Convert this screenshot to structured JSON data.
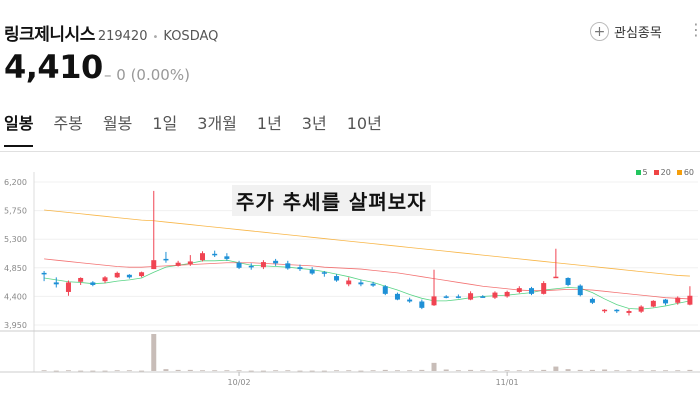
{
  "header": {
    "name": "링크제니시스",
    "code": "219420",
    "separator": "•",
    "market": "KOSDAQ",
    "watch_label": "관심종목",
    "price": "4,410",
    "change": "– 0 (0.00%)"
  },
  "tabs": [
    "일봉",
    "주봉",
    "월봉",
    "1일",
    "3개월",
    "1년",
    "3년",
    "10년"
  ],
  "active_tab": 0,
  "overlay_text": "주가 추세를 살펴보자",
  "legend": [
    {
      "label": "5",
      "color": "#22c55e"
    },
    {
      "label": "20",
      "color": "#ef4444"
    },
    {
      "label": "60",
      "color": "#f59e0b"
    }
  ],
  "chart_data": {
    "type": "candlestick",
    "y_ticks": [
      "6,200",
      "5,750",
      "5,300",
      "4,850",
      "4,400",
      "3,950"
    ],
    "ylim": [
      3950,
      6200
    ],
    "x_ticks": [
      {
        "label": "10/02",
        "index": 16
      },
      {
        "label": "11/01",
        "index": 38
      }
    ],
    "up_color": "#f04452",
    "down_color": "#1e90d6",
    "candles": [
      [
        4770,
        4760,
        4800,
        4640
      ],
      [
        4620,
        4590,
        4700,
        4540
      ],
      [
        4470,
        4620,
        4650,
        4410
      ],
      [
        4630,
        4690,
        4700,
        4580
      ],
      [
        4620,
        4580,
        4640,
        4560
      ],
      [
        4640,
        4700,
        4720,
        4610
      ],
      [
        4700,
        4770,
        4790,
        4690
      ],
      [
        4740,
        4700,
        4750,
        4680
      ],
      [
        4720,
        4780,
        4790,
        4700
      ],
      [
        4830,
        4970,
        6060,
        4830
      ],
      [
        4990,
        4970,
        5100,
        4930
      ],
      [
        4880,
        4930,
        4960,
        4870
      ],
      [
        4910,
        4950,
        5050,
        4880
      ],
      [
        4970,
        5080,
        5110,
        4950
      ],
      [
        5070,
        5050,
        5120,
        5020
      ],
      [
        5030,
        4990,
        5080,
        4960
      ],
      [
        4930,
        4850,
        4960,
        4830
      ],
      [
        4880,
        4870,
        4920,
        4820
      ],
      [
        4860,
        4940,
        4970,
        4830
      ],
      [
        4960,
        4920,
        4990,
        4880
      ],
      [
        4920,
        4840,
        4960,
        4820
      ],
      [
        4860,
        4830,
        4900,
        4800
      ],
      [
        4820,
        4760,
        4860,
        4740
      ],
      [
        4780,
        4760,
        4800,
        4710
      ],
      [
        4720,
        4650,
        4750,
        4630
      ],
      [
        4590,
        4650,
        4700,
        4560
      ],
      [
        4620,
        4590,
        4660,
        4560
      ],
      [
        4600,
        4570,
        4630,
        4550
      ],
      [
        4560,
        4440,
        4580,
        4420
      ],
      [
        4440,
        4350,
        4460,
        4340
      ],
      [
        4350,
        4320,
        4380,
        4300
      ],
      [
        4320,
        4220,
        4350,
        4200
      ],
      [
        4260,
        4400,
        4820,
        4250
      ],
      [
        4400,
        4390,
        4420,
        4370
      ],
      [
        4400,
        4390,
        4430,
        4370
      ],
      [
        4350,
        4450,
        4480,
        4340
      ],
      [
        4400,
        4390,
        4420,
        4380
      ],
      [
        4380,
        4460,
        4480,
        4360
      ],
      [
        4400,
        4470,
        4490,
        4380
      ],
      [
        4470,
        4530,
        4560,
        4450
      ],
      [
        4530,
        4440,
        4550,
        4420
      ],
      [
        4440,
        4610,
        4640,
        4430
      ],
      [
        4700,
        4710,
        5150,
        4690
      ],
      [
        4690,
        4580,
        4700,
        4560
      ],
      [
        4570,
        4420,
        4590,
        4400
      ],
      [
        4360,
        4300,
        4380,
        4280
      ],
      [
        4170,
        4190,
        4200,
        4140
      ],
      [
        4190,
        4180,
        4200,
        4140
      ],
      [
        4140,
        4170,
        4200,
        4100
      ],
      [
        4160,
        4240,
        4260,
        4140
      ],
      [
        4240,
        4330,
        4340,
        4230
      ],
      [
        4350,
        4290,
        4360,
        4260
      ],
      [
        4300,
        4380,
        4400,
        4270
      ],
      [
        4270,
        4410,
        4560,
        4260
      ]
    ],
    "ma": {
      "5": [
        4690,
        4660,
        4630,
        4620,
        4600,
        4610,
        4640,
        4660,
        4690,
        4780,
        4860,
        4890,
        4920,
        4960,
        4960,
        4970,
        4930,
        4890,
        4880,
        4870,
        4860,
        4840,
        4820,
        4790,
        4750,
        4710,
        4660,
        4620,
        4560,
        4500,
        4430,
        4370,
        4330,
        4330,
        4350,
        4380,
        4400,
        4410,
        4420,
        4440,
        4460,
        4500,
        4520,
        4540,
        4530,
        4460,
        4360,
        4270,
        4210,
        4200,
        4220,
        4250,
        4290,
        4330
      ],
      "20": [
        4990,
        4970,
        4950,
        4930,
        4910,
        4890,
        4870,
        4860,
        4860,
        4870,
        4880,
        4890,
        4900,
        4910,
        4920,
        4930,
        4930,
        4930,
        4920,
        4910,
        4900,
        4890,
        4880,
        4860,
        4850,
        4840,
        4830,
        4810,
        4790,
        4770,
        4740,
        4710,
        4680,
        4650,
        4620,
        4590,
        4560,
        4540,
        4520,
        4500,
        4490,
        4490,
        4500,
        4510,
        4510,
        4500,
        4480,
        4460,
        4440,
        4420,
        4400,
        4380,
        4370,
        4360
      ],
      "60": [
        5760,
        5740,
        5720,
        5700,
        5680,
        5660,
        5640,
        5620,
        5600,
        5590,
        5570,
        5550,
        5530,
        5510,
        5490,
        5470,
        5450,
        5430,
        5410,
        5390,
        5370,
        5350,
        5330,
        5310,
        5290,
        5270,
        5250,
        5230,
        5210,
        5190,
        5170,
        5150,
        5130,
        5110,
        5090,
        5070,
        5050,
        5030,
        5010,
        4990,
        4970,
        4950,
        4930,
        4910,
        4890,
        4870,
        4850,
        4830,
        4810,
        4790,
        4770,
        4750,
        4730,
        4720
      ]
    },
    "volume": [
      0.02,
      0.01,
      0.02,
      0.01,
      0.01,
      0.01,
      0.02,
      0.02,
      0.01,
      1.0,
      0.05,
      0.03,
      0.03,
      0.02,
      0.02,
      0.02,
      0.02,
      0.01,
      0.01,
      0.02,
      0.02,
      0.01,
      0.01,
      0.01,
      0.02,
      0.02,
      0.01,
      0.02,
      0.03,
      0.02,
      0.02,
      0.03,
      0.22,
      0.04,
      0.02,
      0.03,
      0.02,
      0.02,
      0.02,
      0.02,
      0.02,
      0.03,
      0.12,
      0.05,
      0.03,
      0.03,
      0.04,
      0.02,
      0.02,
      0.02,
      0.02,
      0.02,
      0.02,
      0.03
    ]
  }
}
